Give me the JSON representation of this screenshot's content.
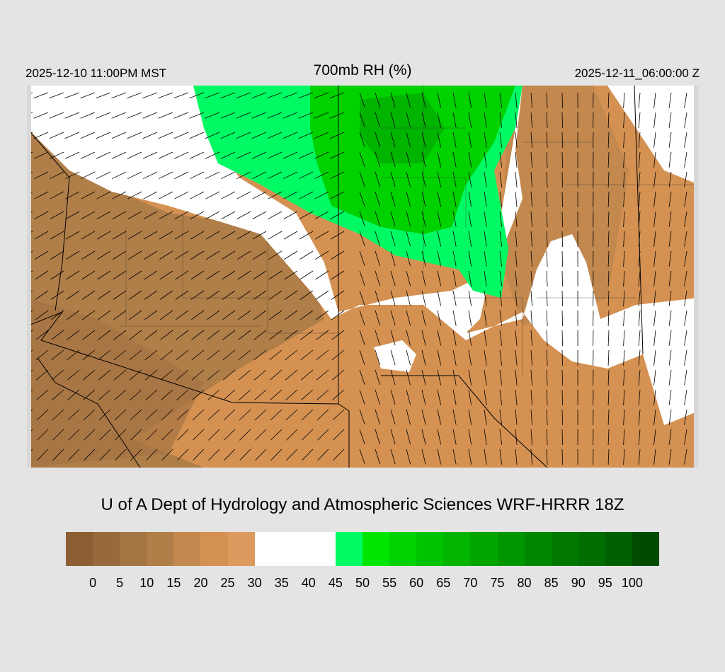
{
  "header": {
    "local_time": "2025-12-10 11:00PM MST",
    "title": "700mb RH (%)",
    "utc_time": "2025-12-11_06:00:00 Z"
  },
  "caption": "U of A Dept of Hydrology and Atmospheric Sciences WRF-HRRR 18Z",
  "colorbar": {
    "labels": [
      "0",
      "5",
      "10",
      "15",
      "20",
      "25",
      "30",
      "35",
      "40",
      "45",
      "50",
      "55",
      "60",
      "65",
      "70",
      "75",
      "80",
      "85",
      "90",
      "95",
      "100"
    ],
    "colors": [
      "#8b5e34",
      "#97693b",
      "#a57443",
      "#b07e48",
      "#c2884e",
      "#d49152",
      "#dd9a5e",
      "#ffffff",
      "#ffffff",
      "#ffffff",
      "#00fa64",
      "#00e600",
      "#00d200",
      "#00c300",
      "#00b400",
      "#00a500",
      "#009600",
      "#008700",
      "#007800",
      "#006e00",
      "#006000",
      "#004b00"
    ]
  }
}
